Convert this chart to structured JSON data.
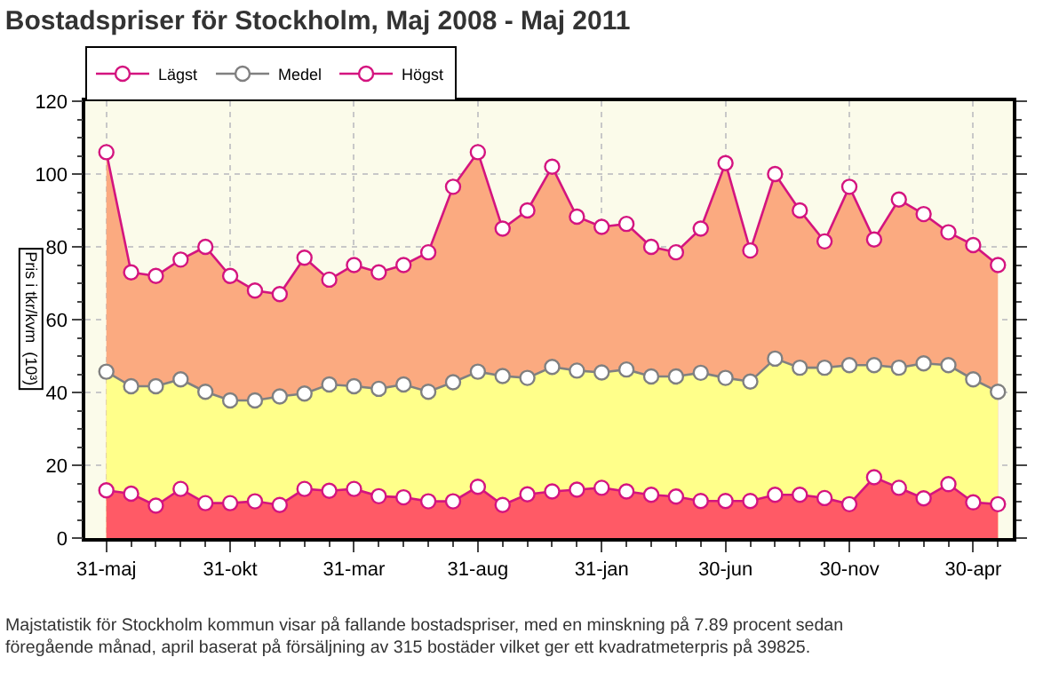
{
  "chart_data": {
    "type": "area",
    "title": "Bostadspriser för Stockholm, Maj 2008 - Maj 2011",
    "ylabel": "Pris i tkr/kvm  (10³)",
    "categories": [
      "31-maj",
      null,
      null,
      null,
      null,
      "31-okt",
      null,
      null,
      null,
      null,
      "31-mar",
      null,
      null,
      null,
      null,
      "31-aug",
      null,
      null,
      null,
      null,
      "31-jan",
      null,
      null,
      null,
      null,
      "30-jun",
      null,
      null,
      null,
      null,
      "30-nov",
      null,
      null,
      null,
      null,
      "30-apr",
      null
    ],
    "series": [
      {
        "name": "Lägst",
        "color": "#d4147f",
        "values": [
          13.1,
          12.2,
          8.9,
          13.5,
          9.6,
          9.6,
          10.1,
          9.1,
          13.5,
          13,
          13.5,
          11.5,
          11.2,
          10.1,
          10.1,
          14.1,
          9.1,
          12,
          12.8,
          13.3,
          13.8,
          12.8,
          11.9,
          11.4,
          10.2,
          10.2,
          10.2,
          11.9,
          11.9,
          11,
          9.3,
          16.7,
          13.8,
          10.9,
          14.8,
          9.8,
          9.3
        ]
      },
      {
        "name": "Medel",
        "color": "#808080",
        "values": [
          45.7,
          41.7,
          41.7,
          43.6,
          40.2,
          37.8,
          37.8,
          38.9,
          39.7,
          42.2,
          41.7,
          41,
          42.2,
          40.2,
          42.8,
          45.7,
          44.5,
          44,
          47,
          46,
          45.5,
          46.3,
          44.4,
          44.4,
          45.4,
          44,
          43,
          49.3,
          46.8,
          46.8,
          47.5,
          47.5,
          46.8,
          48,
          47.5,
          43.6,
          40.2
        ]
      },
      {
        "name": "Högst",
        "color": "#d4147f",
        "values": [
          106,
          73,
          72,
          76.5,
          80,
          72,
          68,
          67,
          77,
          71,
          75,
          73,
          75,
          78.5,
          96.5,
          106,
          85,
          90,
          102,
          88.3,
          85.5,
          86.3,
          80,
          78.5,
          85,
          103,
          79,
          100,
          90,
          81.5,
          96.5,
          82,
          93,
          89,
          84,
          80.5,
          75
        ]
      }
    ],
    "ylim": [
      0,
      120
    ],
    "yticks": [
      0,
      20,
      40,
      60,
      80,
      100,
      120
    ],
    "grid": true,
    "legend": "top left",
    "marker": "circle",
    "line_style": "solid",
    "annotations": [
      "Majstatistik för Stockholm kommun visar på fallande bostadspriser, med en minskning på 7.89 procent sedan föregående månad, april baserat på försäljning av 315 bostäder vilket ger ett kvadratmeterpris på 39825."
    ]
  }
}
